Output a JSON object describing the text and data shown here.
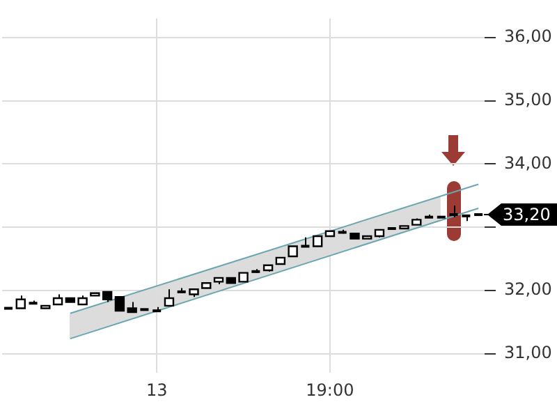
{
  "chart_data": {
    "type": "candlestick",
    "categories": [
      null,
      null,
      null,
      null,
      null,
      null,
      null,
      null,
      null,
      null,
      null,
      null,
      "13",
      null,
      null,
      null,
      null,
      null,
      null,
      null,
      null,
      null,
      null,
      null,
      null,
      null,
      "19:00",
      null,
      null,
      null,
      null,
      null,
      null,
      null,
      null,
      null,
      null,
      null,
      null
    ],
    "ohlc": [
      [
        31.72,
        31.72,
        31.72,
        31.72
      ],
      [
        31.72,
        31.92,
        31.72,
        31.86
      ],
      [
        31.82,
        31.84,
        31.78,
        31.8
      ],
      [
        31.72,
        31.76,
        31.72,
        31.76
      ],
      [
        31.78,
        31.94,
        31.78,
        31.88
      ],
      [
        31.88,
        31.88,
        31.82,
        31.82
      ],
      [
        31.78,
        31.92,
        31.78,
        31.88
      ],
      [
        31.92,
        31.96,
        31.92,
        31.96
      ],
      [
        31.98,
        31.98,
        31.82,
        31.86
      ],
      [
        31.9,
        31.9,
        31.68,
        31.68
      ],
      [
        31.72,
        31.82,
        31.66,
        31.66
      ],
      [
        31.7,
        31.7,
        31.7,
        31.7
      ],
      [
        31.68,
        31.74,
        31.68,
        31.68
      ],
      [
        31.76,
        32.02,
        31.76,
        31.88
      ],
      [
        32.0,
        32.04,
        31.98,
        31.98
      ],
      [
        31.94,
        32.02,
        31.9,
        32.02
      ],
      [
        32.04,
        32.12,
        32.04,
        32.12
      ],
      [
        32.14,
        32.2,
        32.1,
        32.2
      ],
      [
        32.2,
        32.2,
        32.12,
        32.12
      ],
      [
        32.14,
        32.28,
        32.14,
        32.28
      ],
      [
        32.3,
        32.34,
        32.28,
        32.3
      ],
      [
        32.32,
        32.4,
        32.3,
        32.4
      ],
      [
        32.42,
        32.52,
        32.42,
        32.52
      ],
      [
        32.54,
        32.7,
        32.54,
        32.7
      ],
      [
        32.72,
        32.84,
        32.7,
        32.7
      ],
      [
        32.7,
        32.86,
        32.7,
        32.86
      ],
      [
        32.86,
        32.94,
        32.86,
        32.94
      ],
      [
        32.92,
        32.96,
        32.9,
        32.92
      ],
      [
        32.9,
        32.9,
        32.82,
        32.82
      ],
      [
        32.82,
        32.86,
        32.82,
        32.86
      ],
      [
        32.86,
        32.96,
        32.84,
        32.96
      ],
      [
        32.98,
        32.98,
        32.98,
        32.98
      ],
      [
        32.98,
        33.02,
        32.98,
        33.02
      ],
      [
        33.04,
        33.14,
        33.04,
        33.12
      ],
      [
        33.16,
        33.2,
        33.16,
        33.16
      ],
      [
        33.16,
        33.16,
        33.16,
        33.16
      ],
      [
        33.18,
        33.34,
        33.16,
        33.2
      ],
      [
        33.18,
        33.2,
        33.1,
        33.18
      ],
      [
        33.2,
        33.2,
        33.2,
        33.2
      ]
    ],
    "series": [
      {
        "type": "line",
        "color": "#6aa6b0",
        "values": [
          null,
          null,
          null,
          null,
          null,
          31.64,
          null,
          null,
          null,
          null,
          null,
          null,
          null,
          null,
          null,
          null,
          null,
          null,
          null,
          null,
          null,
          null,
          null,
          null,
          null,
          null,
          null,
          null,
          null,
          null,
          null,
          null,
          null,
          null,
          null,
          null,
          null,
          null,
          33.68
        ]
      },
      {
        "type": "line",
        "color": "#6aa6b0",
        "values": [
          null,
          null,
          null,
          null,
          null,
          31.24,
          null,
          null,
          null,
          null,
          null,
          null,
          null,
          null,
          null,
          null,
          null,
          null,
          null,
          null,
          null,
          null,
          null,
          null,
          null,
          null,
          null,
          null,
          null,
          null,
          null,
          null,
          null,
          null,
          null,
          null,
          null,
          null,
          33.3
        ]
      }
    ],
    "ylim": [
      30.7,
      36.3
    ],
    "yticks": [
      {
        "value": 31,
        "label": "31,00"
      },
      {
        "value": 32,
        "label": "32,00"
      },
      {
        "value": 33,
        "label": null
      },
      {
        "value": 34,
        "label": "34,00"
      },
      {
        "value": 35,
        "label": "35,00"
      },
      {
        "value": 36,
        "label": "36,00"
      }
    ],
    "grid": true,
    "legend": false,
    "ref_lines": [
      {
        "axis": "y",
        "value": 33.2,
        "label": "33,20",
        "color": "#000000"
      }
    ]
  }
}
